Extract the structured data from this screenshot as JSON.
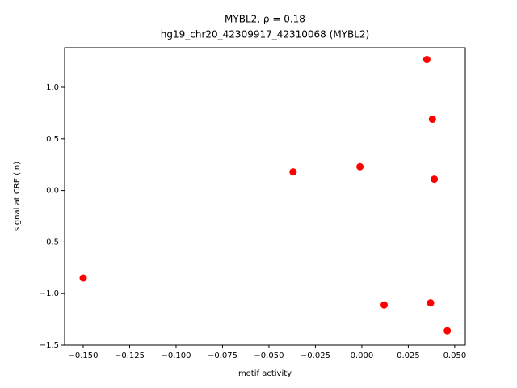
{
  "chart_data": {
    "type": "scatter",
    "title": "MYBL2, ρ = 0.18",
    "subtitle": "hg19_chr20_42309917_42310068 (MYBL2)",
    "x_label": "motif activity",
    "y_label": "signal at CRE (ln)",
    "x": [
      -0.15,
      -0.037,
      -0.001,
      0.012,
      0.035,
      0.038,
      0.039,
      0.037,
      0.046
    ],
    "values": [
      -0.85,
      0.18,
      0.23,
      -1.11,
      1.27,
      0.69,
      0.11,
      -1.09,
      -1.36
    ],
    "color": "#ff0000",
    "xlim": [
      -0.16,
      0.0557
    ],
    "ylim": [
      -1.5,
      1.384
    ],
    "xticks": [
      {
        "value": -0.15,
        "label": "−0.150"
      },
      {
        "value": -0.125,
        "label": "−0.125"
      },
      {
        "value": -0.1,
        "label": "−0.100"
      },
      {
        "value": -0.075,
        "label": "−0.075"
      },
      {
        "value": -0.05,
        "label": "−0.050"
      },
      {
        "value": -0.025,
        "label": "−0.025"
      },
      {
        "value": 0,
        "label": "0.000"
      },
      {
        "value": 0.025,
        "label": "0.025"
      },
      {
        "value": 0.05,
        "label": "0.050"
      }
    ],
    "yticks": [
      {
        "value": -1.5,
        "label": "−1.5"
      },
      {
        "value": -1.0,
        "label": "−1.0"
      },
      {
        "value": -0.5,
        "label": "−0.5"
      },
      {
        "value": 0,
        "label": "0.0"
      },
      {
        "value": 0.5,
        "label": "0.5"
      },
      {
        "value": 1.0,
        "label": "1.0"
      }
    ],
    "grid": false
  }
}
